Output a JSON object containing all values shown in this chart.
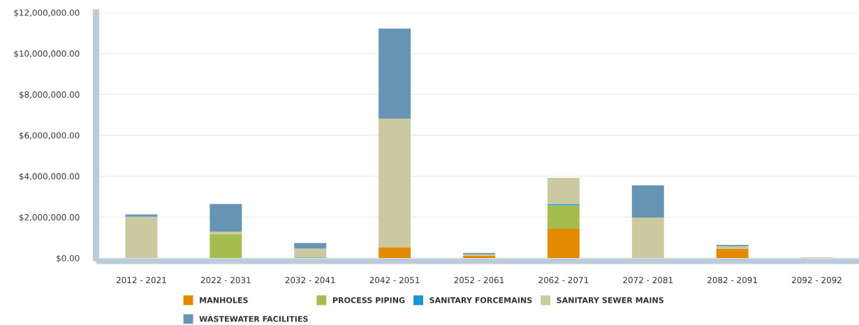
{
  "chart_data": {
    "type": "bar",
    "stacked": true,
    "categories": [
      "2012 - 2021",
      "2022 - 2031",
      "2032 - 2041",
      "2042 - 2051",
      "2052 - 2061",
      "2062 - 2071",
      "2072 - 2081",
      "2082 - 2091",
      "2092 - 2092"
    ],
    "series": [
      {
        "name": "MANHOLES",
        "color": "#e38a00",
        "values": [
          null,
          null,
          null,
          530000,
          120000,
          1430000,
          null,
          440000,
          null
        ]
      },
      {
        "name": "PROCESS PIPING",
        "color": "#a5bc4e",
        "values": [
          null,
          1180000,
          30000,
          null,
          null,
          1150000,
          null,
          null,
          null
        ]
      },
      {
        "name": "SANITARY FORCEMAINS",
        "color": "#1b95d9",
        "values": [
          null,
          null,
          20000,
          null,
          null,
          60000,
          null,
          null,
          null
        ]
      },
      {
        "name": "SANITARY SEWER MAINS",
        "color": "#cbc99f",
        "values": [
          2020000,
          110000,
          420000,
          6290000,
          60000,
          1280000,
          1980000,
          130000,
          30000
        ]
      },
      {
        "name": "WASTEWATER FACILITIES",
        "color": "#6694b2",
        "values": [
          110000,
          1350000,
          260000,
          4400000,
          70000,
          null,
          1570000,
          70000,
          null
        ]
      }
    ],
    "ylim": [
      0,
      12000000
    ],
    "yticks": [
      {
        "value": 0,
        "label": "$0.00"
      },
      {
        "value": 2000000,
        "label": "$2,000,000.00"
      },
      {
        "value": 4000000,
        "label": "$4,000,000.00"
      },
      {
        "value": 6000000,
        "label": "$6,000,000.00"
      },
      {
        "value": 8000000,
        "label": "$8,000,000.00"
      },
      {
        "value": 10000000,
        "label": "$10,000,000.00"
      },
      {
        "value": 12000000,
        "label": "$12,000,000.00"
      }
    ],
    "grid": "y",
    "legend": "bottom"
  }
}
